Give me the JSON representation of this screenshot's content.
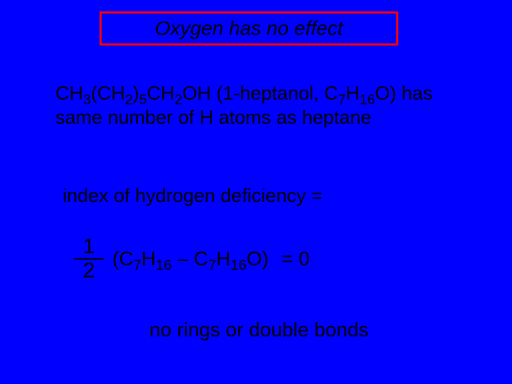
{
  "title": "Oxygen has no effect",
  "statement": {
    "formula_parts": [
      "CH",
      "3",
      "(CH",
      "2",
      ")",
      "5",
      "CH",
      "2",
      "OH (1-heptanol, C",
      "7",
      "H",
      "16",
      "O) has"
    ],
    "line2": "same number of H atoms as heptane"
  },
  "ihd_label": "index of hydrogen deficiency =",
  "fraction": {
    "numerator": "1",
    "denominator": "2"
  },
  "equation": {
    "open": "(C",
    "sub1": "7",
    "mid1": "H",
    "sub2": "16",
    "mid2": " – C",
    "sub3": "7",
    "mid3": "H",
    "sub4": "16",
    "mid4": "O)",
    "equals": " = 0"
  },
  "conclusion": "no rings or double bonds",
  "colors": {
    "background": "#0000ff",
    "border": "#ff0000",
    "text": "#000000"
  }
}
